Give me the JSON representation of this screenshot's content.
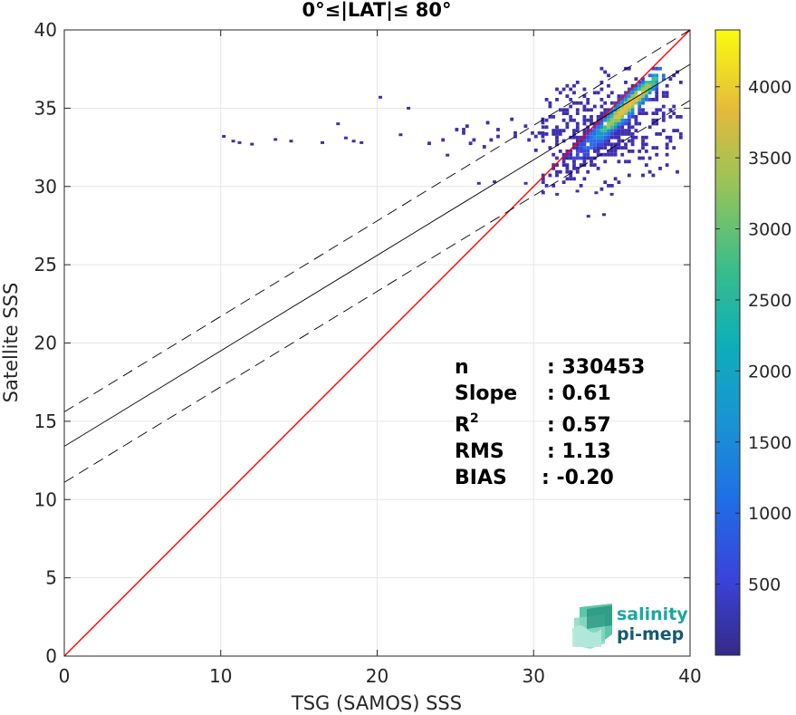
{
  "chart_data": {
    "type": "heatmap",
    "title": "0°≤|LAT|≤ 80°",
    "xlabel": "TSG (SAMOS) SSS",
    "ylabel": "Satellite SSS",
    "xlim": [
      0,
      40
    ],
    "ylim": [
      0,
      40
    ],
    "xticks": [
      "0",
      "10",
      "20",
      "30",
      "40"
    ],
    "yticks": [
      "0",
      "5",
      "10",
      "15",
      "20",
      "25",
      "30",
      "35",
      "40"
    ],
    "grid": true,
    "colormap": "parula",
    "colorbar": {
      "range": [
        0,
        4400
      ],
      "ticks": [
        "500",
        "1000",
        "1500",
        "2000",
        "2500",
        "3000",
        "3500",
        "4000"
      ],
      "tick_values": [
        500,
        1000,
        1500,
        2000,
        2500,
        3000,
        3500,
        4000
      ]
    },
    "lines": [
      {
        "name": "",
        "style": "solid",
        "color": "#ff0000",
        "x": [
          0,
          40
        ],
        "y": [
          0,
          40
        ]
      },
      {
        "name": "",
        "style": "solid",
        "color": "#000000",
        "x": [
          0,
          40
        ],
        "y": [
          13.4,
          37.8
        ]
      },
      {
        "name": "",
        "style": "dashed",
        "color": "#000000",
        "x": [
          0,
          40
        ],
        "y": [
          15.6,
          40.0
        ]
      },
      {
        "name": "",
        "style": "dashed",
        "color": "#000000",
        "x": [
          0,
          40
        ],
        "y": [
          11.1,
          35.5
        ]
      }
    ],
    "density_core": {
      "x_range": [
        30.5,
        37.5
      ],
      "y_range": [
        31.5,
        37.5
      ],
      "peak_near": [
        36,
        35.2
      ]
    },
    "scatter_sparse": [
      [
        10.2,
        33.2
      ],
      [
        10.8,
        32.9
      ],
      [
        11.2,
        32.8
      ],
      [
        12.0,
        32.7
      ],
      [
        13.5,
        33.0
      ],
      [
        14.5,
        32.9
      ],
      [
        16.5,
        32.8
      ],
      [
        18.0,
        33.1
      ],
      [
        18.5,
        32.9
      ],
      [
        19.0,
        32.8
      ],
      [
        17.5,
        34.0
      ],
      [
        21.5,
        33.3
      ],
      [
        24.5,
        32.0
      ],
      [
        22.0,
        35.0
      ],
      [
        20.2,
        35.7
      ],
      [
        33.5,
        28.1
      ],
      [
        34.5,
        28.2
      ],
      [
        26.5,
        30.2
      ],
      [
        27.5,
        30.3
      ],
      [
        29.5,
        30.2
      ],
      [
        31.5,
        29.5
      ],
      [
        32.8,
        29.7
      ],
      [
        34.0,
        29.6
      ],
      [
        35.0,
        29.5
      ]
    ],
    "stats": [
      {
        "label": "n",
        "value": ": 330453"
      },
      {
        "label": "Slope",
        "value": ": 0.61"
      },
      {
        "label": "R2",
        "value": ": 0.57"
      },
      {
        "label": "RMS",
        "value": ": 1.13"
      },
      {
        "label": "BIAS",
        "value": ": -0.20"
      }
    ]
  },
  "logo": {
    "line1": "salinity",
    "line2": "pi-mep"
  }
}
